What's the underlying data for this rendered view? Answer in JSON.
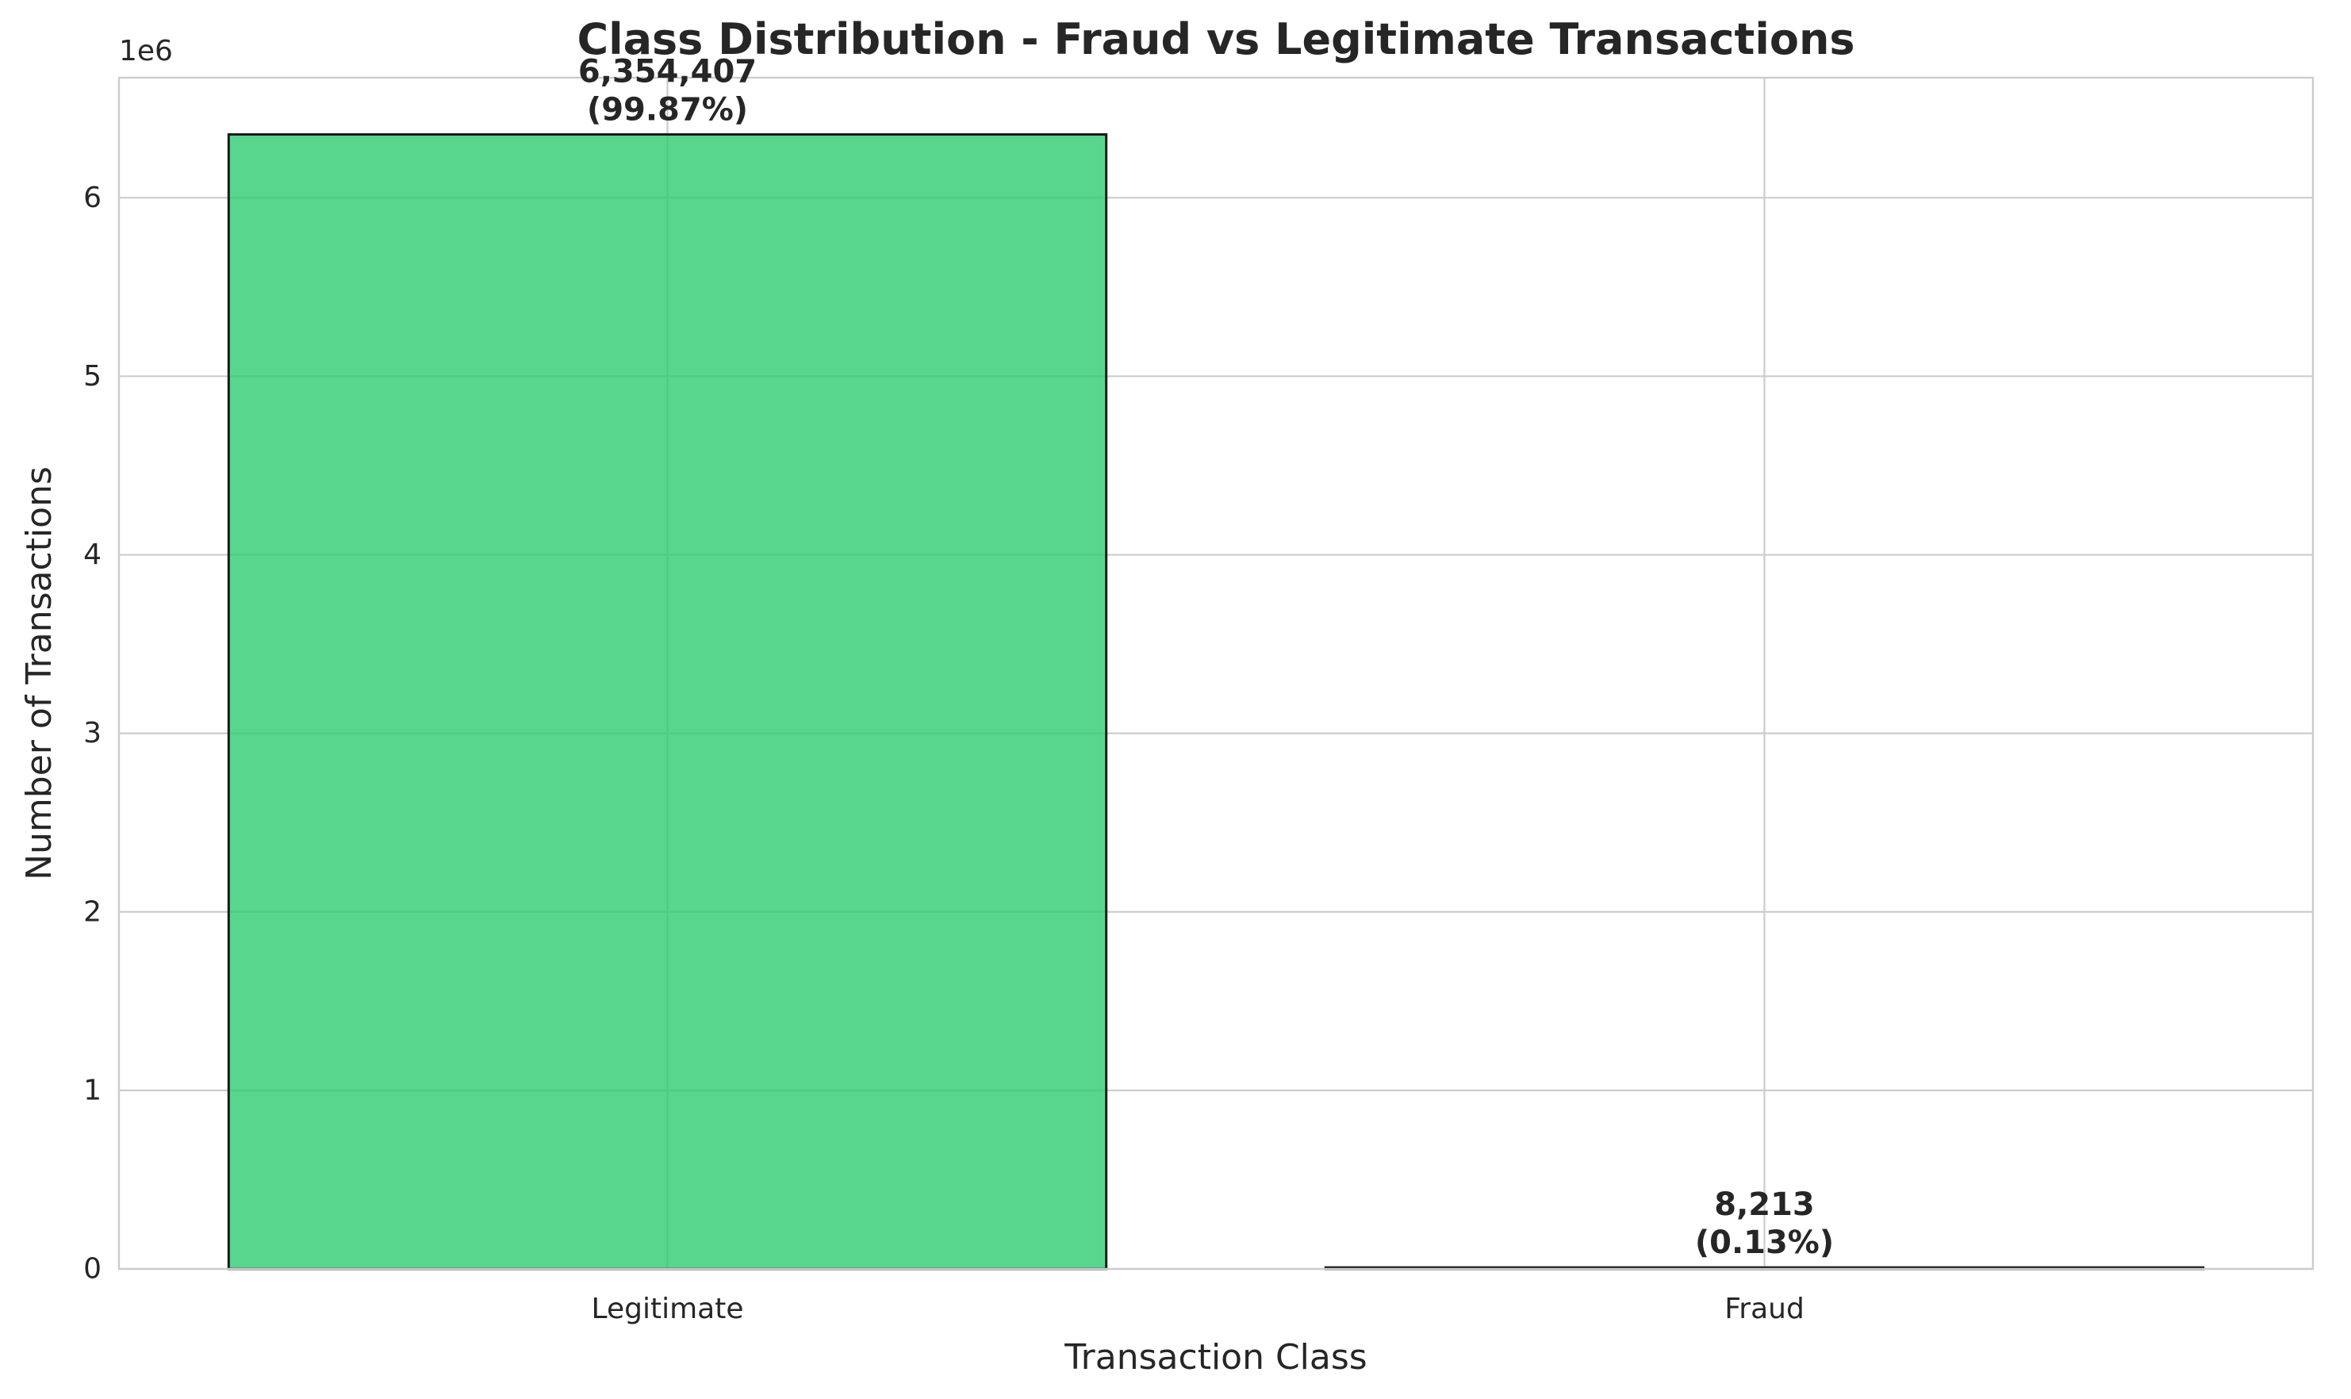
{
  "chart_data": {
    "type": "bar",
    "title": "Class Distribution - Fraud vs Legitimate Transactions",
    "xlabel": "Transaction Class",
    "ylabel": "Number of Transactions",
    "categories": [
      "Legitimate",
      "Fraud"
    ],
    "values": [
      6354407,
      8213
    ],
    "data_labels": [
      {
        "count": "6,354,407",
        "percent": "(99.87%)"
      },
      {
        "count": "8,213",
        "percent": "(0.13%)"
      }
    ],
    "ylim": [
      0,
      6672127
    ],
    "yticks": [
      0,
      1000000,
      2000000,
      3000000,
      4000000,
      5000000,
      6000000
    ],
    "ytick_labels": [
      "0",
      "1",
      "2",
      "3",
      "4",
      "5",
      "6"
    ],
    "y_offset_label": "1e6",
    "colors": [
      "#2ecc71",
      "#e74c3c"
    ],
    "bar_edge_color": "#1a1a1a",
    "grid": true,
    "grid_color": "#cccccc",
    "spine_color": "#cccccc"
  }
}
